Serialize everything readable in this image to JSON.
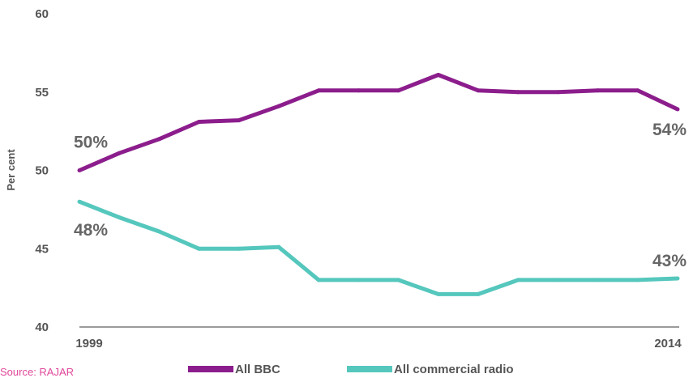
{
  "chart_data": {
    "type": "line",
    "title": "",
    "xlabel": "",
    "ylabel": "Per cent",
    "ylim": [
      40,
      60
    ],
    "yticks": [
      "40",
      "45",
      "50",
      "55",
      "60"
    ],
    "x": [
      1999,
      2000,
      2001,
      2002,
      2003,
      2004,
      2005,
      2006,
      2007,
      2008,
      2009,
      2010,
      2011,
      2012,
      2013,
      2014
    ],
    "x_tick_labels": [
      "1999",
      "2014"
    ],
    "series": [
      {
        "name": "All BBC",
        "color": "#8c1d8c",
        "values": [
          50,
          51.1,
          52,
          53.1,
          53.2,
          54.1,
          55.1,
          55.1,
          55.1,
          56.1,
          55.1,
          55,
          55,
          55.1,
          55.1,
          53.9
        ],
        "start_label": "50%",
        "end_label": "54%"
      },
      {
        "name": "All commercial radio",
        "color": "#55c7bd",
        "values": [
          48,
          47,
          46.1,
          45,
          45,
          45.1,
          43,
          43,
          43,
          42.1,
          42.1,
          43,
          43,
          43,
          43,
          43.1
        ],
        "start_label": "48%",
        "end_label": "43%"
      }
    ],
    "legend_position": "bottom",
    "grid": false
  },
  "footer": {
    "source": "Source: RAJAR"
  }
}
